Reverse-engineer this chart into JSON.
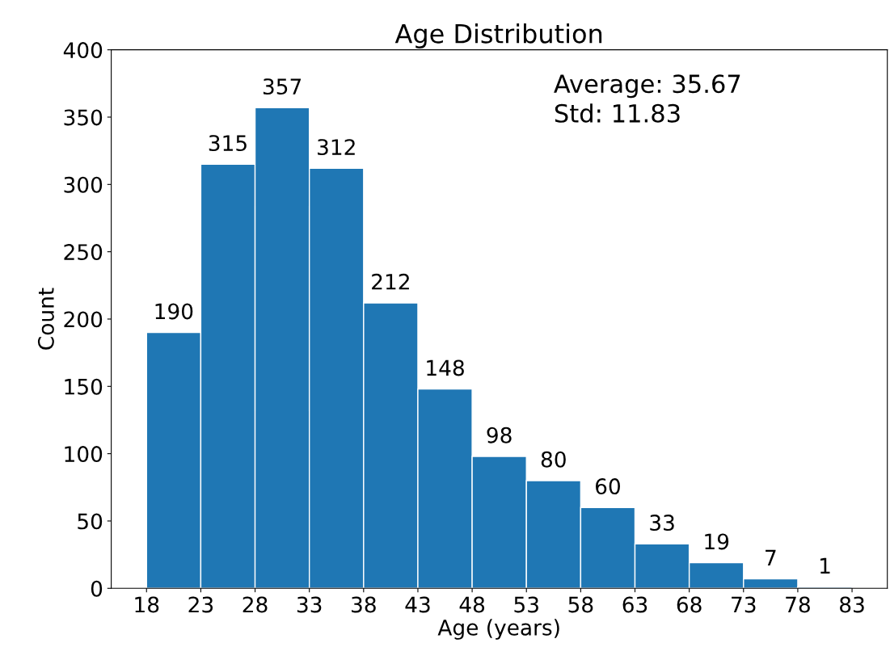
{
  "chart_data": {
    "type": "histogram",
    "title": "Age Distribution",
    "xlabel": "Age (years)",
    "ylabel": "Count",
    "bins": [
      18,
      23,
      28,
      33,
      38,
      43,
      48,
      53,
      58,
      63,
      68,
      73,
      78,
      83
    ],
    "values": [
      190,
      315,
      357,
      312,
      212,
      148,
      98,
      80,
      60,
      33,
      19,
      7,
      1
    ],
    "color": "#1f77b4",
    "xlim": [
      14.75,
      86.25
    ],
    "xticks": [
      18,
      23,
      28,
      33,
      38,
      43,
      48,
      53,
      58,
      63,
      68,
      73,
      78,
      83
    ],
    "ylim": [
      0,
      400
    ],
    "yticks": [
      0,
      50,
      100,
      150,
      200,
      250,
      300,
      350,
      400
    ],
    "data_labels": true,
    "grid": false,
    "annotations": [
      "Average: 35.67\nStd: 11.83"
    ]
  }
}
